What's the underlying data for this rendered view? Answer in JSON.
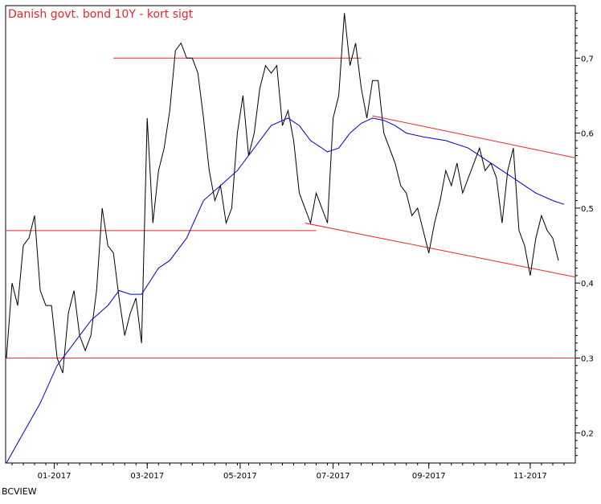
{
  "chart_data": {
    "type": "line",
    "title": "Danish govt. bond 10Y - kort sigt",
    "source": "BCVIEW",
    "xlabel": "",
    "ylabel": "",
    "ylim": [
      0.16,
      0.77
    ],
    "xlim": [
      0,
      101
    ],
    "x_unit": "weeks from start of series (Nov 2016)",
    "y_ticks": [
      "0,2",
      "0,3",
      "0,4",
      "0,5",
      "0,6",
      "0,7"
    ],
    "y_tick_values": [
      0.2,
      0.3,
      0.4,
      0.5,
      0.6,
      0.7
    ],
    "x_ticks": [
      {
        "label": "01-2017",
        "week": 8.5
      },
      {
        "label": "03-2017",
        "week": 25
      },
      {
        "label": "05-2017",
        "week": 41.5
      },
      {
        "label": "07-2017",
        "week": 58
      },
      {
        "label": "09-2017",
        "week": 75
      },
      {
        "label": "11-2017",
        "week": 93
      }
    ],
    "series": [
      {
        "name": "",
        "color": "#000000",
        "points": [
          [
            0,
            0.3
          ],
          [
            1,
            0.4
          ],
          [
            2,
            0.37
          ],
          [
            3,
            0.45
          ],
          [
            4,
            0.46
          ],
          [
            5,
            0.49
          ],
          [
            6,
            0.39
          ],
          [
            7,
            0.37
          ],
          [
            8,
            0.37
          ],
          [
            9,
            0.3
          ],
          [
            10,
            0.28
          ],
          [
            11,
            0.36
          ],
          [
            12,
            0.39
          ],
          [
            13,
            0.33
          ],
          [
            14,
            0.31
          ],
          [
            15,
            0.33
          ],
          [
            16,
            0.39
          ],
          [
            17,
            0.5
          ],
          [
            18,
            0.45
          ],
          [
            19,
            0.44
          ],
          [
            20,
            0.38
          ],
          [
            21,
            0.33
          ],
          [
            22,
            0.36
          ],
          [
            23,
            0.38
          ],
          [
            24,
            0.32
          ],
          [
            25,
            0.62
          ],
          [
            26,
            0.48
          ],
          [
            27,
            0.55
          ],
          [
            28,
            0.58
          ],
          [
            29,
            0.63
          ],
          [
            30,
            0.71
          ],
          [
            31,
            0.72
          ],
          [
            32,
            0.7
          ],
          [
            33,
            0.7
          ],
          [
            34,
            0.68
          ],
          [
            35,
            0.62
          ],
          [
            36,
            0.55
          ],
          [
            37,
            0.51
          ],
          [
            38,
            0.53
          ],
          [
            39,
            0.48
          ],
          [
            40,
            0.5
          ],
          [
            41,
            0.6
          ],
          [
            42,
            0.65
          ],
          [
            43,
            0.57
          ],
          [
            44,
            0.6
          ],
          [
            45,
            0.66
          ],
          [
            46,
            0.69
          ],
          [
            47,
            0.68
          ],
          [
            48,
            0.69
          ],
          [
            49,
            0.61
          ],
          [
            50,
            0.63
          ],
          [
            51,
            0.59
          ],
          [
            52,
            0.52
          ],
          [
            53,
            0.5
          ],
          [
            54,
            0.48
          ],
          [
            55,
            0.52
          ],
          [
            56,
            0.5
          ],
          [
            57,
            0.48
          ],
          [
            58,
            0.62
          ],
          [
            59,
            0.65
          ],
          [
            60,
            0.76
          ],
          [
            61,
            0.69
          ],
          [
            62,
            0.72
          ],
          [
            63,
            0.66
          ],
          [
            64,
            0.62
          ],
          [
            65,
            0.67
          ],
          [
            66,
            0.67
          ],
          [
            67,
            0.6
          ],
          [
            68,
            0.58
          ],
          [
            69,
            0.56
          ],
          [
            70,
            0.53
          ],
          [
            71,
            0.52
          ],
          [
            72,
            0.49
          ],
          [
            73,
            0.5
          ],
          [
            74,
            0.47
          ],
          [
            75,
            0.44
          ],
          [
            76,
            0.48
          ],
          [
            77,
            0.51
          ],
          [
            78,
            0.55
          ],
          [
            79,
            0.53
          ],
          [
            80,
            0.56
          ],
          [
            81,
            0.52
          ],
          [
            82,
            0.54
          ],
          [
            83,
            0.56
          ],
          [
            84,
            0.58
          ],
          [
            85,
            0.55
          ],
          [
            86,
            0.56
          ],
          [
            87,
            0.54
          ],
          [
            88,
            0.48
          ],
          [
            89,
            0.55
          ],
          [
            90,
            0.58
          ],
          [
            91,
            0.47
          ],
          [
            92,
            0.45
          ],
          [
            93,
            0.41
          ],
          [
            94,
            0.46
          ],
          [
            95,
            0.49
          ],
          [
            96,
            0.47
          ],
          [
            97,
            0.46
          ],
          [
            98,
            0.43
          ]
        ]
      },
      {
        "name": "",
        "color": "#0000cc",
        "points": [
          [
            0,
            0.16
          ],
          [
            3,
            0.2
          ],
          [
            6,
            0.24
          ],
          [
            9,
            0.29
          ],
          [
            12,
            0.32
          ],
          [
            15,
            0.35
          ],
          [
            18,
            0.37
          ],
          [
            20,
            0.39
          ],
          [
            22,
            0.385
          ],
          [
            24,
            0.385
          ],
          [
            27,
            0.42
          ],
          [
            29,
            0.43
          ],
          [
            32,
            0.46
          ],
          [
            35,
            0.51
          ],
          [
            38,
            0.53
          ],
          [
            41,
            0.55
          ],
          [
            44,
            0.58
          ],
          [
            47,
            0.61
          ],
          [
            50,
            0.62
          ],
          [
            52,
            0.61
          ],
          [
            54,
            0.59
          ],
          [
            56,
            0.58
          ],
          [
            57,
            0.575
          ],
          [
            59,
            0.58
          ],
          [
            61,
            0.6
          ],
          [
            63,
            0.613
          ],
          [
            65,
            0.62
          ],
          [
            67,
            0.617
          ],
          [
            69,
            0.61
          ],
          [
            71,
            0.6
          ],
          [
            74,
            0.595
          ],
          [
            78,
            0.59
          ],
          [
            82,
            0.58
          ],
          [
            85,
            0.565
          ],
          [
            88,
            0.55
          ],
          [
            91,
            0.535
          ],
          [
            94,
            0.52
          ],
          [
            97,
            0.51
          ],
          [
            99,
            0.505
          ]
        ]
      }
    ],
    "annotations": [
      {
        "type": "resistance",
        "color": "#e8262e",
        "points": [
          [
            19,
            0.7
          ],
          [
            63,
            0.7
          ]
        ]
      },
      {
        "type": "support",
        "color": "#e8262e",
        "points": [
          [
            0,
            0.47
          ],
          [
            55,
            0.47
          ]
        ]
      },
      {
        "type": "support",
        "color": "#e8262e",
        "points": [
          [
            0,
            0.3
          ],
          [
            101,
            0.3
          ]
        ]
      },
      {
        "type": "channel-top",
        "color": "#e8262e",
        "points": [
          [
            65,
            0.623
          ],
          [
            101,
            0.567
          ]
        ]
      },
      {
        "type": "channel-bottom",
        "color": "#e8262e",
        "points": [
          [
            53,
            0.48
          ],
          [
            101,
            0.408
          ]
        ]
      }
    ],
    "grid": false,
    "legend": "none"
  }
}
